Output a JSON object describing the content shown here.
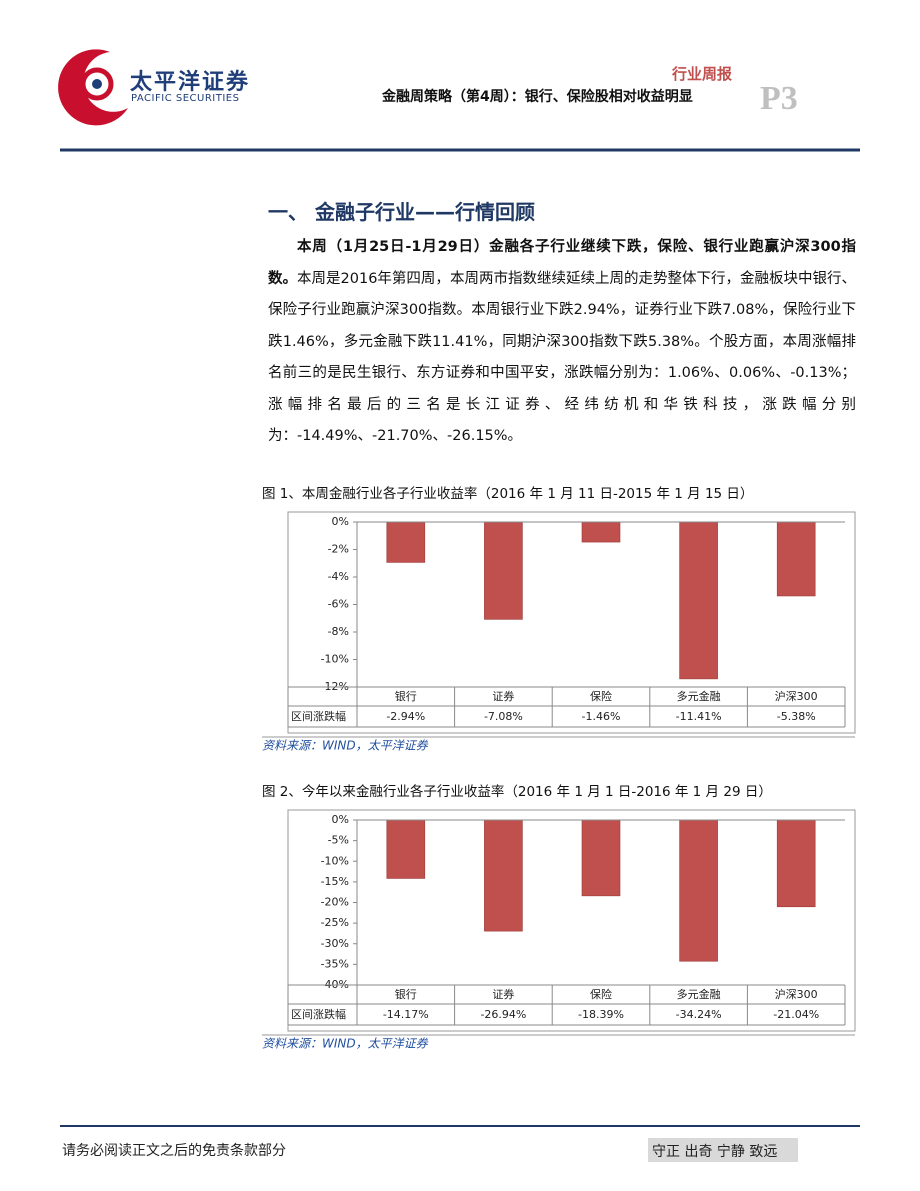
{
  "header": {
    "logo_cn": "太平洋证券",
    "logo_en": "PACIFIC SECURITIES",
    "report_type": "行业周报",
    "subtitle": "金融周策略（第4周）：银行、保险股相对收益明显",
    "page": "P3"
  },
  "section_title": "一、 金融子行业——行情回顾",
  "paragraph": {
    "lead": "本周（1月25日-1月29日）金融各子行业继续下跌，保险、银行业跑赢沪深300指数。",
    "body": "本周是2016年第四周，本周两市指数继续延续上周的走势整体下行，金融板块中银行、保险子行业跑赢沪深300指数。本周银行业下跌2.94%，证券行业下跌7.08%，保险行业下跌1.46%，多元金融下跌11.41%，同期沪深300指数下跌5.38%。个股方面，本周涨幅排名前三的是民生银行、东方证券和中国平安，涨跌幅分别为：1.06%、0.06%、-0.13%；涨幅排名最后的三名是长江证券、经纬纺机和华铁科技，涨跌幅分别为：-14.49%、-21.70%、-26.15%。"
  },
  "chart_data": [
    {
      "type": "bar",
      "title": "图 1、本周金融行业各子行业收益率（2016 年 1 月 11 日-2015 年 1 月 15 日）",
      "categories": [
        "银行",
        "证券",
        "保险",
        "多元金融",
        "沪深300"
      ],
      "values": [
        -2.94,
        -7.08,
        -1.46,
        -11.41,
        -5.38
      ],
      "value_labels": [
        "-2.94%",
        "-7.08%",
        "-1.46%",
        "-11.41%",
        "-5.38%"
      ],
      "table_label": "区间涨跌幅",
      "color": "#c0504d",
      "ylim": [
        -12,
        0
      ],
      "yticks": [
        {
          "value": 0,
          "label": "0%"
        },
        {
          "value": -2,
          "label": "-2%"
        },
        {
          "value": -4,
          "label": "-4%"
        },
        {
          "value": -6,
          "label": "-6%"
        },
        {
          "value": -8,
          "label": "-8%"
        },
        {
          "value": -10,
          "label": "-10%"
        },
        {
          "value": -12,
          "label": "-12%"
        }
      ],
      "source": "资料来源：WIND，太平洋证券"
    },
    {
      "type": "bar",
      "title": "图 2、今年以来金融行业各子行业收益率（2016 年 1 月 1 日-2016 年 1 月 29 日）",
      "categories": [
        "银行",
        "证券",
        "保险",
        "多元金融",
        "沪深300"
      ],
      "values": [
        -14.17,
        -26.94,
        -18.39,
        -34.24,
        -21.04
      ],
      "value_labels": [
        "-14.17%",
        "-26.94%",
        "-18.39%",
        "-34.24%",
        "-21.04%"
      ],
      "table_label": "区间涨跌幅",
      "color": "#c0504d",
      "ylim": [
        -40,
        0
      ],
      "yticks": [
        {
          "value": 0,
          "label": "0%"
        },
        {
          "value": -5,
          "label": "-5%"
        },
        {
          "value": -10,
          "label": "-10%"
        },
        {
          "value": -15,
          "label": "-15%"
        },
        {
          "value": -20,
          "label": "-20%"
        },
        {
          "value": -25,
          "label": "-25%"
        },
        {
          "value": -30,
          "label": "-30%"
        },
        {
          "value": -35,
          "label": "-35%"
        },
        {
          "value": -40,
          "label": "-40%"
        }
      ],
      "source": "资料来源：WIND，太平洋证券"
    }
  ],
  "footer": {
    "disclaimer": "请务必阅读正文之后的免责条款部分",
    "motto": "守正 出奇 宁静 致远"
  }
}
